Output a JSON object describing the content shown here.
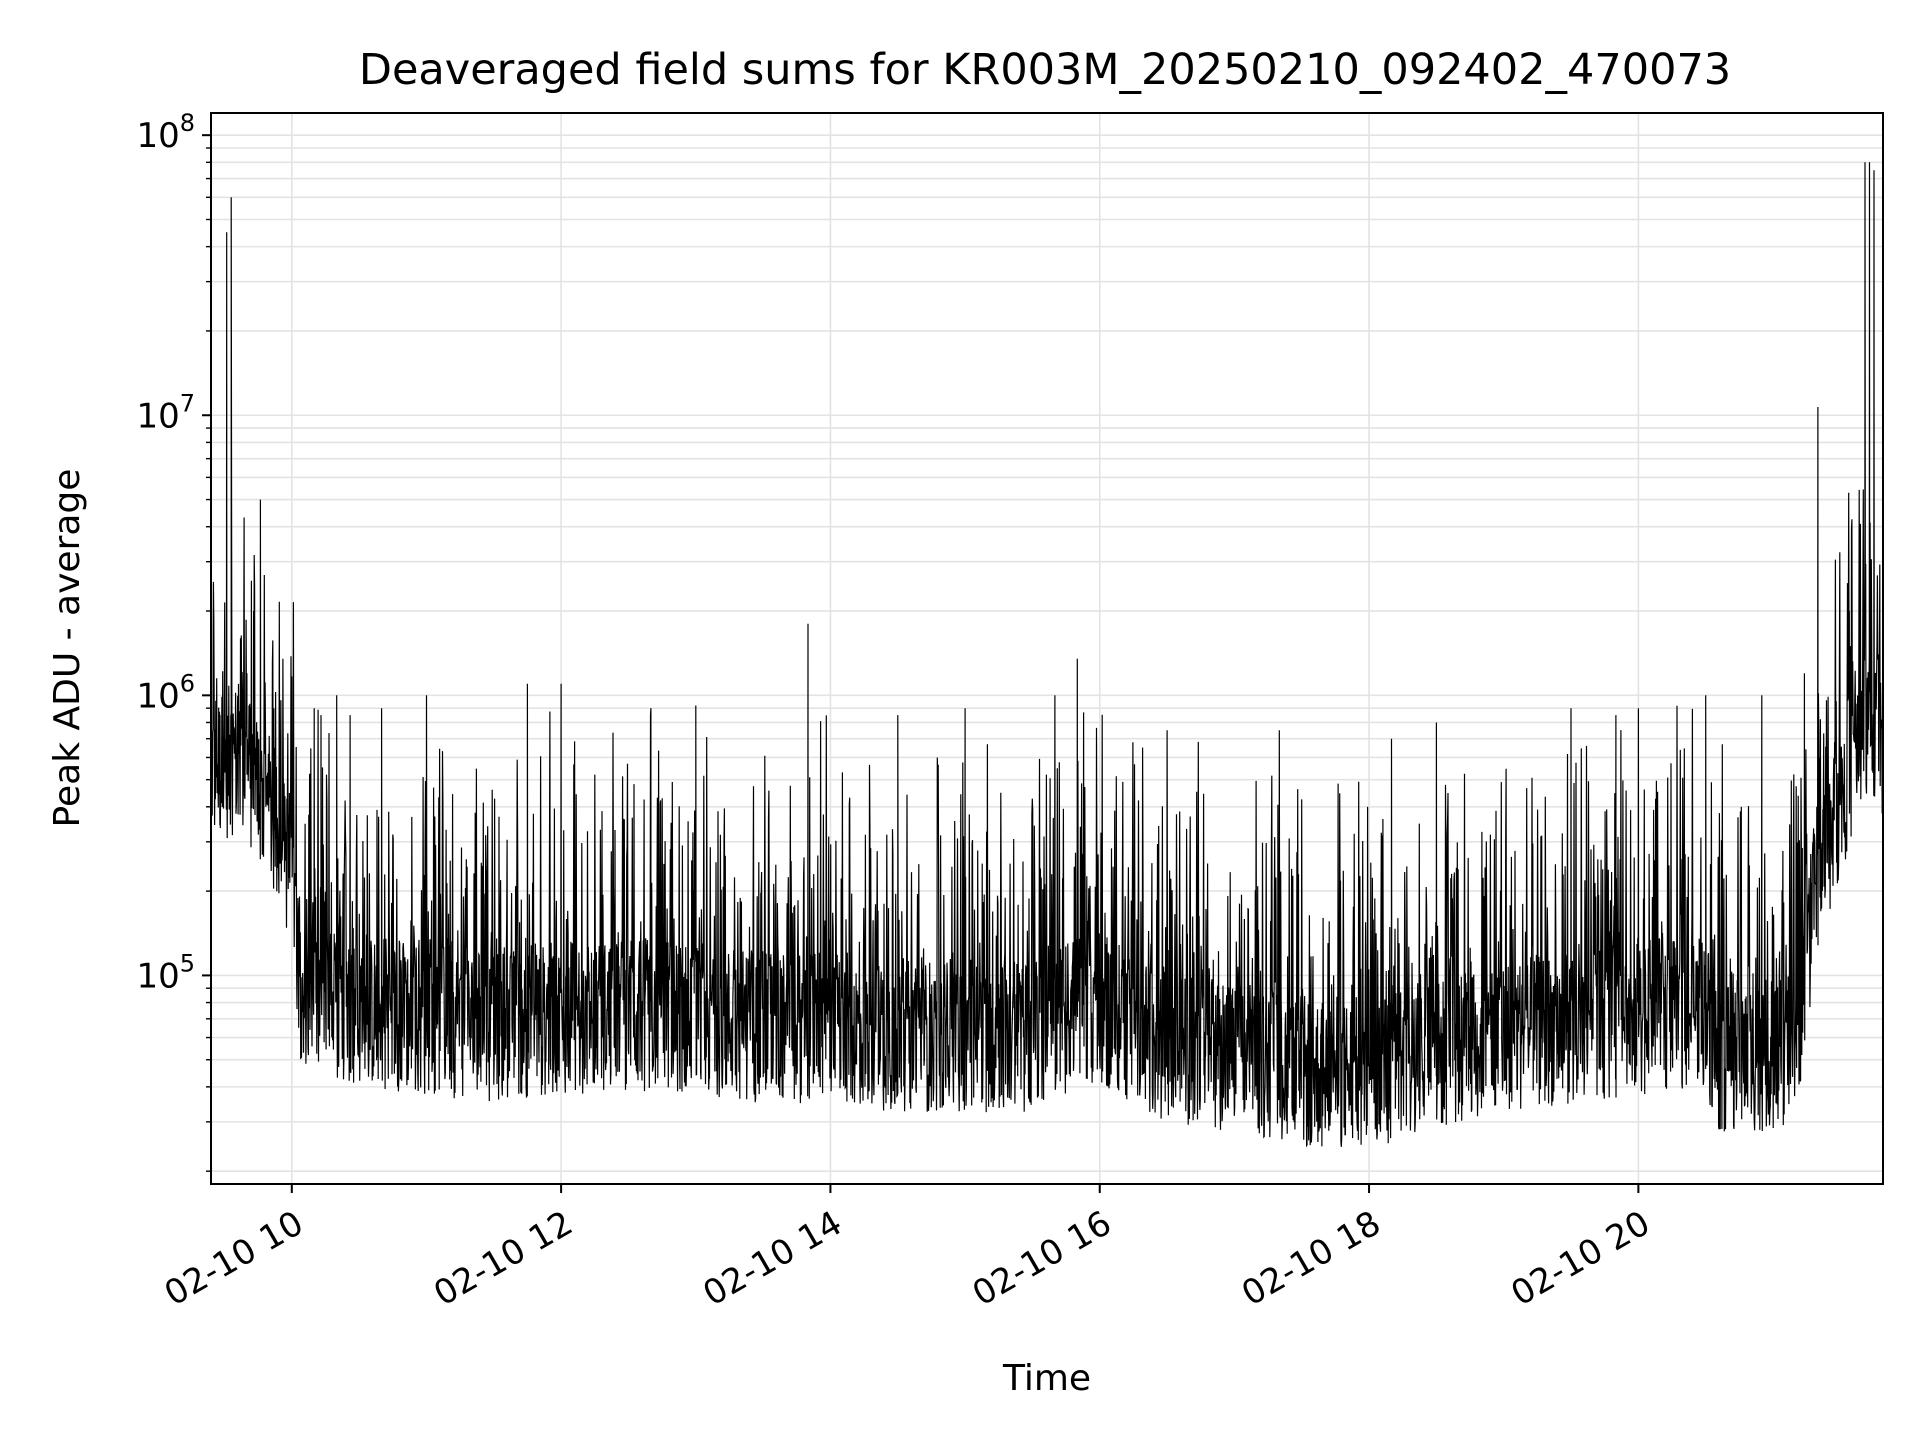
{
  "chart_data": {
    "type": "line",
    "title": "Deaveraged field sums for KR003M_20250210_092402_470073",
    "xlabel": "Time",
    "ylabel": "Peak ADU - average",
    "yscale": "log",
    "ylim": [
      18000,
      120000000
    ],
    "xlim": [
      "02-10 09:24",
      "02-10 21:49"
    ],
    "grid": true,
    "x_ticks": [
      {
        "value": "02-10 10:00",
        "label": "02-10 10"
      },
      {
        "value": "02-10 12:00",
        "label": "02-10 12"
      },
      {
        "value": "02-10 14:00",
        "label": "02-10 14"
      },
      {
        "value": "02-10 16:00",
        "label": "02-10 16"
      },
      {
        "value": "02-10 18:00",
        "label": "02-10 18"
      },
      {
        "value": "02-10 20:00",
        "label": "02-10 20"
      }
    ],
    "y_ticks": [
      {
        "value": 100000,
        "base": "10",
        "exp": "5"
      },
      {
        "value": 1000000,
        "base": "10",
        "exp": "6"
      },
      {
        "value": 10000000,
        "base": "10",
        "exp": "7"
      },
      {
        "value": 100000000,
        "base": "10",
        "exp": "8"
      }
    ],
    "series": [
      {
        "color": "#000000",
        "baseline": {
          "x": [
            "02-10 09:24",
            "02-10 09:30",
            "02-10 09:36",
            "02-10 09:42",
            "02-10 09:48",
            "02-10 09:54",
            "02-10 10:00",
            "02-10 10:04",
            "02-10 10:10",
            "02-10 10:30",
            "02-10 11:00",
            "02-10 11:30",
            "02-10 12:00",
            "02-10 12:30",
            "02-10 13:00",
            "02-10 13:30",
            "02-10 14:00",
            "02-10 14:30",
            "02-10 15:00",
            "02-10 15:30",
            "02-10 15:50",
            "02-10 16:00",
            "02-10 16:30",
            "02-10 17:00",
            "02-10 17:30",
            "02-10 18:00",
            "02-10 18:30",
            "02-10 19:00",
            "02-10 19:30",
            "02-10 20:00",
            "02-10 20:30",
            "02-10 20:35",
            "02-10 21:00",
            "02-10 21:10",
            "02-10 21:20",
            "02-10 21:30",
            "02-10 21:40",
            "02-10 21:49"
          ],
          "y": [
            600000,
            600000,
            650000,
            550000,
            450000,
            350000,
            250000,
            100000,
            85000,
            80000,
            75000,
            70000,
            75000,
            78000,
            75000,
            70000,
            70000,
            65000,
            65000,
            65000,
            80000,
            80000,
            60000,
            55000,
            48000,
            48000,
            55000,
            65000,
            70000,
            75000,
            80000,
            55000,
            55000,
            60000,
            250000,
            450000,
            850000,
            750000
          ]
        },
        "peaks": [
          {
            "x": "02-10 09:25",
            "y": 1700000
          },
          {
            "x": "02-10 09:28",
            "y": 850000
          },
          {
            "x": "02-10 09:31",
            "y": 45000000
          },
          {
            "x": "02-10 09:33",
            "y": 60000000
          },
          {
            "x": "02-10 09:35",
            "y": 900000
          },
          {
            "x": "02-10 09:40",
            "y": 1200000
          },
          {
            "x": "02-10 09:43",
            "y": 2000000
          },
          {
            "x": "02-10 09:46",
            "y": 5000000
          },
          {
            "x": "02-10 09:52",
            "y": 900000
          },
          {
            "x": "02-10 10:10",
            "y": 900000
          },
          {
            "x": "02-10 10:13",
            "y": 850000
          },
          {
            "x": "02-10 10:20",
            "y": 1000000
          },
          {
            "x": "02-10 10:26",
            "y": 850000
          },
          {
            "x": "02-10 10:40",
            "y": 900000
          },
          {
            "x": "02-10 11:00",
            "y": 1000000
          },
          {
            "x": "02-10 11:45",
            "y": 1100000
          },
          {
            "x": "02-10 12:00",
            "y": 1100000
          },
          {
            "x": "02-10 12:40",
            "y": 900000
          },
          {
            "x": "02-10 13:00",
            "y": 920000
          },
          {
            "x": "02-10 13:50",
            "y": 1800000
          },
          {
            "x": "02-10 14:30",
            "y": 850000
          },
          {
            "x": "02-10 15:00",
            "y": 900000
          },
          {
            "x": "02-10 15:40",
            "y": 1000000
          },
          {
            "x": "02-10 15:50",
            "y": 1350000
          },
          {
            "x": "02-10 16:30",
            "y": 750000
          },
          {
            "x": "02-10 17:20",
            "y": 750000
          },
          {
            "x": "02-10 18:10",
            "y": 700000
          },
          {
            "x": "02-10 18:30",
            "y": 800000
          },
          {
            "x": "02-10 19:30",
            "y": 900000
          },
          {
            "x": "02-10 19:50",
            "y": 850000
          },
          {
            "x": "02-10 20:00",
            "y": 900000
          },
          {
            "x": "02-10 20:30",
            "y": 1000000
          },
          {
            "x": "02-10 20:55",
            "y": 1000000
          },
          {
            "x": "02-10 21:14",
            "y": 1200000
          },
          {
            "x": "02-10 21:20",
            "y": 10700000
          },
          {
            "x": "02-10 21:34",
            "y": 2000000
          },
          {
            "x": "02-10 21:41",
            "y": 80000000
          },
          {
            "x": "02-10 21:43",
            "y": 80000000
          },
          {
            "x": "02-10 21:45",
            "y": 75000000
          },
          {
            "x": "02-10 21:47",
            "y": 1400000
          }
        ]
      }
    ]
  }
}
